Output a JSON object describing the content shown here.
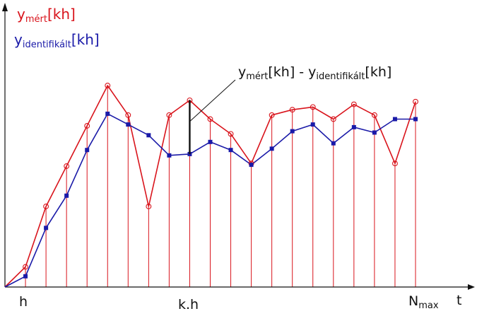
{
  "legend": {
    "measured_main": "y",
    "measured_sub": "mért",
    "measured_suffix": "[kh]",
    "identified_main": "y",
    "identified_sub": "identifikált",
    "identified_suffix": "[kh]"
  },
  "annotation": {
    "a_main": "y",
    "a_sub": "mért",
    "a_suffix": "[kh] - ",
    "b_main": "y",
    "b_sub": "identifikált",
    "b_suffix": "[kh]"
  },
  "axis": {
    "x_tick_first": "h",
    "x_tick_middle": "k.h",
    "x_tick_last_main": "N",
    "x_tick_last_sub": "max",
    "x_label": "t"
  },
  "colors": {
    "measured": "#d9141c",
    "identified": "#1a1aa8",
    "stems": "#d9141c",
    "axes": "#111111",
    "error_bar": "#111111"
  },
  "chart_data": {
    "type": "line",
    "x": [
      0,
      1,
      2,
      3,
      4,
      5,
      6,
      7,
      8,
      9,
      10,
      11,
      12,
      13,
      14,
      15,
      16,
      17,
      18,
      19,
      20
    ],
    "series": [
      {
        "key": "measured",
        "marker": "circle",
        "values": [
          0,
          15,
          60,
          90,
          120,
          150,
          128,
          60,
          128,
          139,
          125,
          114,
          92,
          128,
          132,
          134,
          125,
          136,
          128,
          92,
          138
        ]
      },
      {
        "key": "identified",
        "marker": "square",
        "values": [
          0,
          8,
          44,
          68,
          102,
          129,
          121,
          113,
          98,
          99,
          108,
          102,
          91,
          103,
          116,
          121,
          107,
          119,
          115,
          125,
          125
        ]
      }
    ],
    "highlight_index": 9,
    "ylim": [
      0,
      160
    ],
    "grid": false,
    "legend_position": "top-left"
  }
}
